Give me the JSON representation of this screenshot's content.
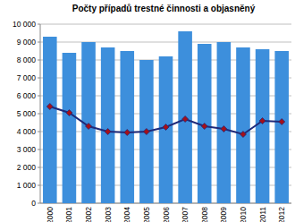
{
  "chart_data": {
    "type": "bar",
    "title": "Počty případů  trestné činnosti a objasněný",
    "categories": [
      "2000",
      "2001",
      "2002",
      "2003",
      "2004",
      "2005",
      "2006",
      "2007",
      "2008",
      "2009",
      "2010",
      "2011",
      "2012"
    ],
    "series": [
      {
        "type": "bar",
        "color": "#3d8fdc",
        "values": [
          9300,
          8400,
          9000,
          8700,
          8500,
          8000,
          8200,
          9600,
          8900,
          9000,
          8700,
          8600,
          8500
        ]
      },
      {
        "type": "line",
        "color": "#1f2a7a",
        "marker": "diamond",
        "values": [
          5400,
          5050,
          4300,
          4000,
          3950,
          4000,
          4250,
          4700,
          4300,
          4150,
          3850,
          4600,
          4550
        ]
      }
    ],
    "ylim": [
      0,
      10000
    ],
    "yticks": [
      0,
      {
        "value": 1000,
        "label": "1 000"
      },
      {
        "value": 2000,
        "label": "2 000"
      },
      {
        "value": 3000,
        "label": "3 000"
      },
      {
        "value": 4000,
        "label": "4 000"
      },
      {
        "value": 5000,
        "label": "5 000"
      },
      {
        "value": 6000,
        "label": "6 000"
      },
      {
        "value": 7000,
        "label": "7 000"
      },
      {
        "value": 8000,
        "label": "8 000"
      },
      {
        "value": 9000,
        "label": "9 000"
      },
      {
        "value": 10000,
        "label": "10 000"
      }
    ],
    "grid": true
  }
}
